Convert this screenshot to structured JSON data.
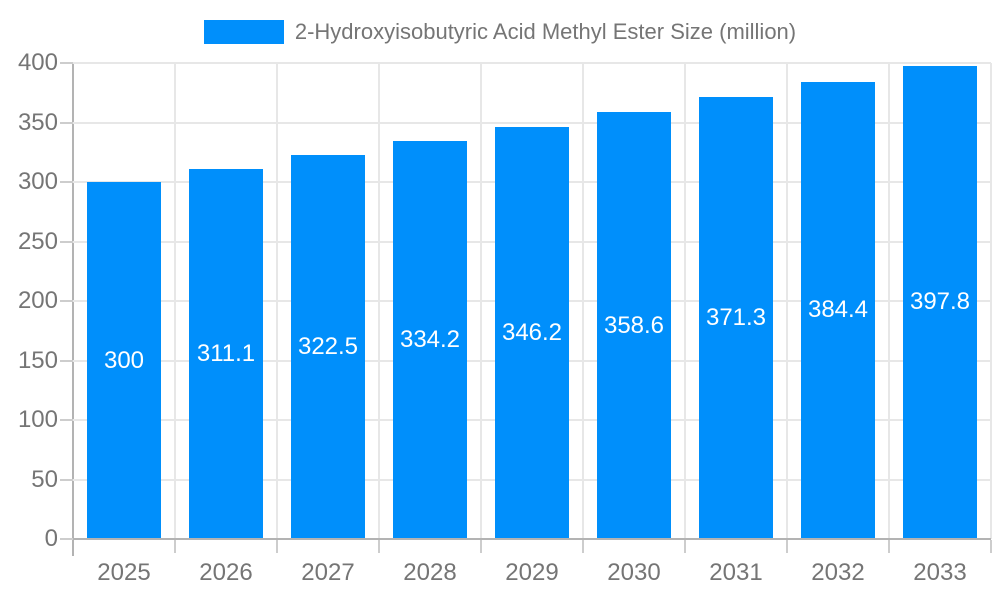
{
  "chart_data": {
    "type": "bar",
    "title": "2-Hydroxyisobutyric Acid Methyl Ester Size (million)",
    "categories": [
      "2025",
      "2026",
      "2027",
      "2028",
      "2029",
      "2030",
      "2031",
      "2032",
      "2033"
    ],
    "series": [
      {
        "name": "2-Hydroxyisobutyric Acid Methyl Ester Size (million)",
        "values": [
          300,
          311.1,
          322.5,
          334.2,
          346.2,
          358.6,
          371.3,
          384.4,
          397.8
        ],
        "value_labels": [
          "300",
          "311.1",
          "322.5",
          "334.2",
          "346.2",
          "358.6",
          "371.3",
          "384.4",
          "397.8"
        ]
      }
    ],
    "xlabel": "",
    "ylabel": "",
    "ylim": [
      0,
      400
    ],
    "ytick_step": 50,
    "ytick_labels": [
      "0",
      "50",
      "100",
      "150",
      "200",
      "250",
      "300",
      "350",
      "400"
    ],
    "grid": true,
    "legend_position": "top",
    "colors": {
      "bar": "#008FFB",
      "axis_label": "#757575",
      "value_label": "#ffffff",
      "gridline": "#e7e7e7",
      "axis_line": "#b3b3b3",
      "tick": "#cdcdcd",
      "background": "#ffffff"
    }
  }
}
